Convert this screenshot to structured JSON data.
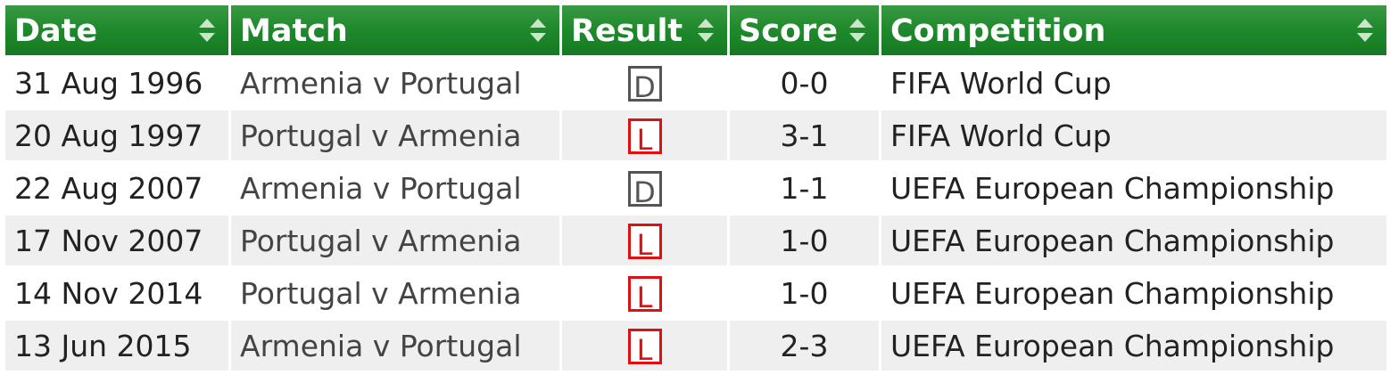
{
  "headers": {
    "date": "Date",
    "match": "Match",
    "result": "Result",
    "score": "Score",
    "competition": "Competition"
  },
  "icons": {
    "sort": "sort-arrows-icon"
  },
  "result_colors": {
    "D": "#555555",
    "L": "#dd1111"
  },
  "rows": [
    {
      "date": "31 Aug 1996",
      "match": "Armenia v Portugal",
      "result": "D",
      "score": "0-0",
      "competition": "FIFA World Cup"
    },
    {
      "date": "20 Aug 1997",
      "match": "Portugal v Armenia",
      "result": "L",
      "score": "3-1",
      "competition": "FIFA World Cup"
    },
    {
      "date": "22 Aug 2007",
      "match": "Armenia v Portugal",
      "result": "D",
      "score": "1-1",
      "competition": "UEFA European Championship"
    },
    {
      "date": "17 Nov 2007",
      "match": "Portugal v Armenia",
      "result": "L",
      "score": "1-0",
      "competition": "UEFA European Championship"
    },
    {
      "date": "14 Nov 2014",
      "match": "Portugal v Armenia",
      "result": "L",
      "score": "1-0",
      "competition": "UEFA European Championship"
    },
    {
      "date": "13 Jun 2015",
      "match": "Armenia v Portugal",
      "result": "L",
      "score": "2-3",
      "competition": "UEFA European Championship"
    }
  ]
}
